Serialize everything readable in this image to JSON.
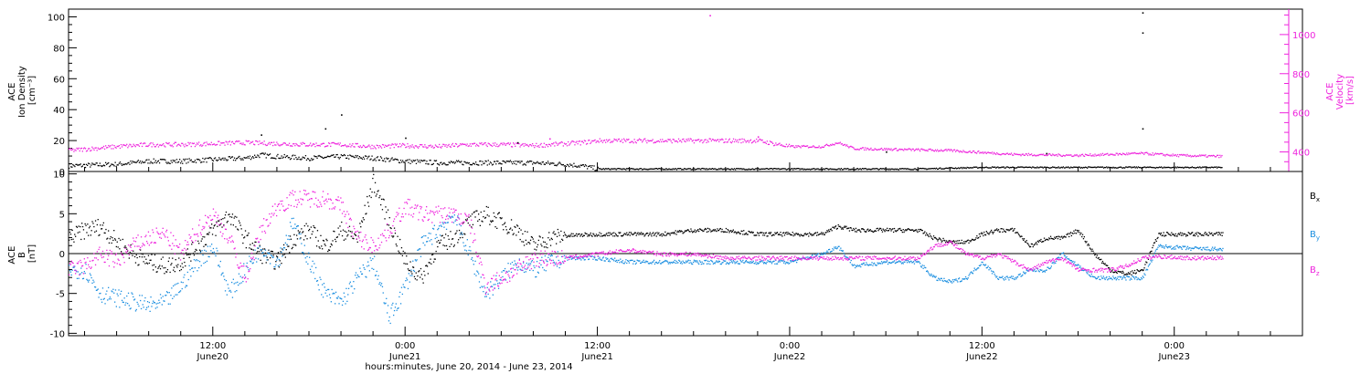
{
  "colors": {
    "axis": "#000000",
    "bx": "#000000",
    "by": "#1a8ee0",
    "bz": "#ee22dd",
    "density": "#000000",
    "velocity": "#ee22dd"
  },
  "panels": {
    "top": {
      "left_label_lines": [
        "ACE",
        "Ion Density",
        "[cm⁻³]"
      ],
      "right_label_lines": [
        "ACE",
        "Velocity",
        "[km/s]"
      ]
    },
    "bottom": {
      "left_label_lines": [
        "ACE",
        "B",
        "[nT]"
      ]
    }
  },
  "x_axis": {
    "title": "hours:minutes, June 20, 2014 - June 23, 2014",
    "ticks": [
      {
        "hours": 12,
        "time": "12:00",
        "date": "June20"
      },
      {
        "hours": 24,
        "time": "0:00",
        "date": "June21"
      },
      {
        "hours": 36,
        "time": "12:00",
        "date": "June21"
      },
      {
        "hours": 48,
        "time": "0:00",
        "date": "June22"
      },
      {
        "hours": 60,
        "time": "12:00",
        "date": "June22"
      },
      {
        "hours": 72,
        "time": "0:00",
        "date": "June23"
      }
    ]
  },
  "chart_data": [
    {
      "type": "scatter",
      "panel": "top",
      "x_unit": "hours since June 20, 2014 0:00 UT",
      "xlim": [
        3,
        80
      ],
      "ylim_left": [
        0,
        105
      ],
      "left_ticks": [
        0,
        20,
        40,
        60,
        80,
        100
      ],
      "ylim_right": [
        300,
        1130
      ],
      "right_ticks": [
        400,
        600,
        800,
        1000
      ],
      "grid": false,
      "series": [
        {
          "name": "Ion Density",
          "axis": "left",
          "points": [
            [
              3,
              4
            ],
            [
              6,
              5
            ],
            [
              8,
              7
            ],
            [
              10,
              7
            ],
            [
              12,
              8
            ],
            [
              14,
              9
            ],
            [
              15,
              11
            ],
            [
              16,
              10
            ],
            [
              18,
              9
            ],
            [
              20,
              10
            ],
            [
              22,
              9
            ],
            [
              24,
              7
            ],
            [
              26,
              6
            ],
            [
              28,
              6
            ],
            [
              30,
              6
            ],
            [
              32,
              6
            ],
            [
              34,
              5
            ],
            [
              35,
              4
            ],
            [
              36,
              2
            ],
            [
              40,
              2
            ],
            [
              44,
              2
            ],
            [
              48,
              2
            ],
            [
              52,
              2
            ],
            [
              56,
              2
            ],
            [
              60,
              3
            ],
            [
              64,
              3
            ],
            [
              68,
              3
            ],
            [
              72,
              3
            ],
            [
              75,
              3
            ]
          ],
          "outliers": [
            [
              15,
              24
            ],
            [
              19,
              28
            ],
            [
              20,
              37
            ],
            [
              24,
              22
            ],
            [
              31,
              19
            ],
            [
              54,
              13
            ],
            [
              64,
              12
            ],
            [
              70,
              103
            ],
            [
              70,
              90
            ],
            [
              70,
              28
            ]
          ]
        },
        {
          "name": "Velocity",
          "axis": "right",
          "points": [
            [
              3,
              410
            ],
            [
              6,
              430
            ],
            [
              8,
              440
            ],
            [
              10,
              440
            ],
            [
              12,
              445
            ],
            [
              14,
              450
            ],
            [
              16,
              445
            ],
            [
              18,
              440
            ],
            [
              20,
              440
            ],
            [
              22,
              430
            ],
            [
              24,
              435
            ],
            [
              26,
              430
            ],
            [
              28,
              440
            ],
            [
              30,
              440
            ],
            [
              32,
              435
            ],
            [
              34,
              445
            ],
            [
              35,
              450
            ],
            [
              36,
              460
            ],
            [
              40,
              460
            ],
            [
              44,
              460
            ],
            [
              46,
              460
            ],
            [
              48,
              430
            ],
            [
              50,
              430
            ],
            [
              51,
              450
            ],
            [
              52,
              420
            ],
            [
              55,
              415
            ],
            [
              58,
              410
            ],
            [
              62,
              390
            ],
            [
              66,
              385
            ],
            [
              70,
              395
            ],
            [
              72,
              385
            ],
            [
              75,
              380
            ]
          ],
          "outliers": [
            [
              43,
              1100
            ],
            [
              46,
              480
            ],
            [
              33,
              470
            ]
          ]
        }
      ]
    },
    {
      "type": "scatter",
      "panel": "bottom",
      "x_unit": "hours since June 20, 2014 0:00 UT",
      "xlim": [
        3,
        80
      ],
      "ylim": [
        -10.3,
        10.3
      ],
      "y_ticks": [
        -10,
        -5,
        0,
        5,
        10
      ],
      "zero_line": true,
      "legend_position": "right",
      "series": [
        {
          "name": "Bx",
          "legend_main": "B",
          "legend_sub": "x",
          "points": [
            [
              3,
              2
            ],
            [
              4,
              3
            ],
            [
              5,
              3.5
            ],
            [
              6,
              1.5
            ],
            [
              7,
              0
            ],
            [
              8,
              -1
            ],
            [
              9,
              -1.5
            ],
            [
              10,
              -1
            ],
            [
              11,
              1
            ],
            [
              12,
              3
            ],
            [
              13,
              5
            ],
            [
              14,
              2
            ],
            [
              15,
              0
            ],
            [
              16,
              -1
            ],
            [
              17,
              2
            ],
            [
              18,
              3
            ],
            [
              19,
              1
            ],
            [
              20,
              3
            ],
            [
              21,
              2
            ],
            [
              22,
              9
            ],
            [
              23,
              4
            ],
            [
              24,
              -1
            ],
            [
              25,
              -3
            ],
            [
              26,
              1
            ],
            [
              27,
              2
            ],
            [
              28,
              4
            ],
            [
              29,
              5
            ],
            [
              30,
              4
            ],
            [
              31,
              3
            ],
            [
              32,
              1
            ],
            [
              33,
              2
            ],
            [
              34,
              2.3
            ],
            [
              36,
              2.5
            ],
            [
              38,
              2.5
            ],
            [
              40,
              2.5
            ],
            [
              42,
              3
            ],
            [
              44,
              3
            ],
            [
              46,
              2.5
            ],
            [
              48,
              2.5
            ],
            [
              49,
              2.5
            ],
            [
              50,
              2.5
            ],
            [
              51,
              3.5
            ],
            [
              52,
              3
            ],
            [
              53,
              3
            ],
            [
              54,
              3
            ],
            [
              55,
              3
            ],
            [
              56,
              3
            ],
            [
              57,
              2
            ],
            [
              58,
              1.5
            ],
            [
              59,
              1.5
            ],
            [
              60,
              2.5
            ],
            [
              61,
              3
            ],
            [
              62,
              3
            ],
            [
              63,
              1
            ],
            [
              64,
              2
            ],
            [
              65,
              2
            ],
            [
              66,
              3
            ],
            [
              67,
              0
            ],
            [
              68,
              -2
            ],
            [
              69,
              -2.5
            ],
            [
              70,
              -2
            ],
            [
              71,
              2.5
            ],
            [
              73,
              2.5
            ],
            [
              75,
              2.5
            ]
          ]
        },
        {
          "name": "By",
          "legend_main": "B",
          "legend_sub": "y",
          "points": [
            [
              3,
              -2
            ],
            [
              4,
              -2
            ],
            [
              5,
              -5
            ],
            [
              6,
              -5.5
            ],
            [
              7,
              -6
            ],
            [
              8,
              -6.5
            ],
            [
              9,
              -6
            ],
            [
              10,
              -4
            ],
            [
              11,
              -1
            ],
            [
              12,
              1
            ],
            [
              13,
              -5
            ],
            [
              14,
              -2
            ],
            [
              15,
              1
            ],
            [
              16,
              -1
            ],
            [
              17,
              4
            ],
            [
              18,
              -1
            ],
            [
              19,
              -5
            ],
            [
              20,
              -6
            ],
            [
              21,
              -3
            ],
            [
              22,
              -1
            ],
            [
              23,
              -8
            ],
            [
              24,
              -4
            ],
            [
              25,
              1
            ],
            [
              26,
              3
            ],
            [
              27,
              5
            ],
            [
              28,
              0
            ],
            [
              29,
              -5
            ],
            [
              30,
              -3
            ],
            [
              31,
              -1
            ],
            [
              32,
              -2
            ],
            [
              33,
              -1
            ],
            [
              34,
              -0.5
            ],
            [
              36,
              -0.5
            ],
            [
              38,
              -1
            ],
            [
              40,
              -1
            ],
            [
              42,
              -1
            ],
            [
              44,
              -1
            ],
            [
              46,
              -1
            ],
            [
              48,
              -1
            ],
            [
              50,
              0
            ],
            [
              51,
              1
            ],
            [
              52,
              -1.5
            ],
            [
              54,
              -1
            ],
            [
              56,
              -1
            ],
            [
              57,
              -3
            ],
            [
              58,
              -3.5
            ],
            [
              59,
              -3
            ],
            [
              60,
              -1
            ],
            [
              61,
              -3
            ],
            [
              62,
              -3
            ],
            [
              63,
              -2
            ],
            [
              64,
              -2
            ],
            [
              65,
              0
            ],
            [
              66,
              -1.5
            ],
            [
              67,
              -3
            ],
            [
              68,
              -3
            ],
            [
              69,
              -3
            ],
            [
              70,
              -3
            ],
            [
              71,
              1
            ],
            [
              73,
              0.7
            ],
            [
              75,
              0.6
            ]
          ]
        },
        {
          "name": "Bz",
          "legend_main": "B",
          "legend_sub": "z",
          "points": [
            [
              3,
              -2
            ],
            [
              4,
              -1.5
            ],
            [
              5,
              0
            ],
            [
              6,
              -1
            ],
            [
              7,
              1
            ],
            [
              8,
              2
            ],
            [
              9,
              2.5
            ],
            [
              10,
              0
            ],
            [
              11,
              3
            ],
            [
              12,
              5
            ],
            [
              13,
              2
            ],
            [
              14,
              -3
            ],
            [
              15,
              3
            ],
            [
              16,
              6
            ],
            [
              17,
              7
            ],
            [
              18,
              7
            ],
            [
              19,
              7
            ],
            [
              20,
              6
            ],
            [
              21,
              2
            ],
            [
              22,
              1
            ],
            [
              23,
              3
            ],
            [
              24,
              6
            ],
            [
              25,
              5
            ],
            [
              26,
              5
            ],
            [
              27,
              5
            ],
            [
              28,
              4
            ],
            [
              29,
              -4
            ],
            [
              30,
              -3
            ],
            [
              31,
              -2
            ],
            [
              32,
              -0.5
            ],
            [
              33,
              -0.5
            ],
            [
              34,
              -0.5
            ],
            [
              36,
              0
            ],
            [
              38,
              0.5
            ],
            [
              40,
              0
            ],
            [
              42,
              0
            ],
            [
              44,
              -0.5
            ],
            [
              46,
              -0.5
            ],
            [
              48,
              -0.5
            ],
            [
              50,
              -0.5
            ],
            [
              52,
              -0.5
            ],
            [
              54,
              -0.5
            ],
            [
              56,
              -0.5
            ],
            [
              57,
              1
            ],
            [
              58,
              1.5
            ],
            [
              59,
              0
            ],
            [
              60,
              -0.5
            ],
            [
              61,
              0
            ],
            [
              62,
              -1
            ],
            [
              63,
              -2
            ],
            [
              64,
              -1
            ],
            [
              65,
              -0.5
            ],
            [
              66,
              -2
            ],
            [
              67,
              -2
            ],
            [
              68,
              -2
            ],
            [
              69,
              -1.5
            ],
            [
              70,
              -0.5
            ],
            [
              71,
              -0.3
            ],
            [
              73,
              -0.5
            ],
            [
              75,
              -0.5
            ]
          ]
        }
      ]
    }
  ]
}
